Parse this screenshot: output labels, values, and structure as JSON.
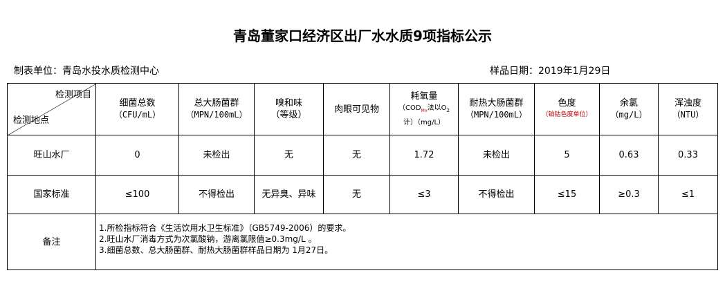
{
  "title": "青岛董家口经济区出厂水水质9项指标公示",
  "unit": "制表单位：青岛水投水质检测中心",
  "sample_date": "样品日期：2019年1月29日",
  "corner": {
    "item": "检测项目",
    "place": "检测地点"
  },
  "headers": [
    {
      "name": "细菌总数",
      "unit": "（CFU/mL）"
    },
    {
      "name": "总大肠菌群",
      "unit": "（MPN/100mL）"
    },
    {
      "name": "嗅和味",
      "unit": "（等级）"
    },
    {
      "name": "肉眼可见物",
      "unit": ""
    },
    {
      "name": "耗氧量",
      "unit": "（COD",
      "unit_sub": "Mn",
      "unit2": "法以O",
      "unit_sub2": "2",
      "unit3": "计）（mg/L）"
    },
    {
      "name": "耐热大肠菌群",
      "unit": "（MPN/100mL）"
    },
    {
      "name": "色度",
      "unit": "（铂钴色度单位）"
    },
    {
      "name": "余氯",
      "unit": "（mg/L）"
    },
    {
      "name": "浑浊度",
      "unit": "（NTU）"
    }
  ],
  "rows": [
    {
      "label": "旺山水厂",
      "values": [
        "0",
        "未检出",
        "无",
        "无",
        "1.72",
        "未检出",
        "5",
        "0.63",
        "0.33"
      ]
    },
    {
      "label": "国家标准",
      "values": [
        "≤100",
        "不得检出",
        "无异臭、异味",
        "无",
        "≤3",
        "不得检出",
        "≤15",
        "≥0.3",
        "≤1"
      ]
    }
  ],
  "notes": {
    "label": "备注",
    "lines": [
      "1.所检指标符合《生活饮用水卫生标准》（GB5749-2006）的要求。",
      "2.旺山水厂消毒方式为次氯酸钠，游离氯限值≥0.3mg/L 。",
      "3.细菌总数、总大肠菌群、耐热大肠菌群样品日期为 1月27日。"
    ]
  },
  "colors": {
    "color_unit_text": "#c00000"
  }
}
